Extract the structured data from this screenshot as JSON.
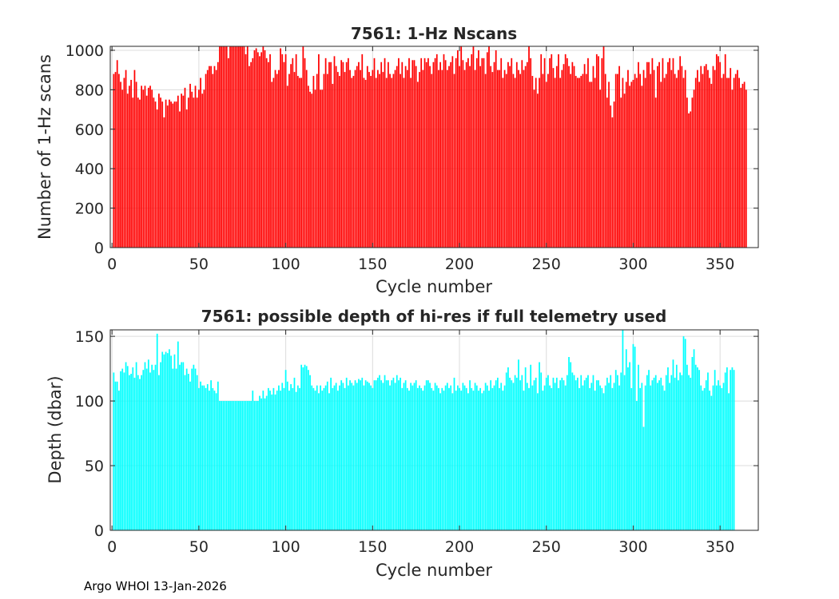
{
  "footer": "Argo WHOI 13-Jan-2026",
  "chart_data": [
    {
      "type": "bar",
      "title": "7561: 1-Hz Nscans",
      "xlabel": "Cycle number",
      "ylabel": "Number of 1-Hz scans",
      "xlim": [
        -1,
        372
      ],
      "ylim": [
        0,
        1020
      ],
      "xticks": [
        0,
        50,
        100,
        150,
        200,
        250,
        300,
        350
      ],
      "yticks": [
        0,
        200,
        400,
        600,
        800,
        1000
      ],
      "grid": true,
      "bar_color": "#ff0000",
      "x_start": 1,
      "values": [
        880,
        890,
        950,
        880,
        840,
        800,
        860,
        900,
        780,
        820,
        850,
        760,
        900,
        840,
        760,
        750,
        820,
        800,
        820,
        770,
        810,
        820,
        800,
        760,
        740,
        700,
        780,
        760,
        740,
        660,
        750,
        720,
        750,
        740,
        730,
        740,
        740,
        770,
        690,
        780,
        770,
        810,
        700,
        760,
        830,
        790,
        760,
        820,
        760,
        800,
        860,
        780,
        800,
        880,
        900,
        920,
        920,
        880,
        920,
        900,
        940,
        1020,
        1020,
        1020,
        1020,
        1020,
        960,
        1020,
        1020,
        1020,
        1020,
        1020,
        1020,
        1020,
        1020,
        1020,
        980,
        1020,
        920,
        940,
        960,
        1000,
        1010,
        990,
        970,
        990,
        1020,
        1000,
        960,
        940,
        980,
        840,
        860,
        900,
        880,
        900,
        1010,
        980,
        940,
        980,
        820,
        880,
        930,
        960,
        890,
        980,
        870,
        860,
        860,
        1020,
        960,
        900,
        820,
        790,
        780,
        870,
        800,
        880,
        980,
        800,
        800,
        880,
        960,
        880,
        940,
        940,
        830,
        970,
        920,
        890,
        870,
        950,
        940,
        890,
        940,
        960,
        900,
        860,
        870,
        900,
        920,
        940,
        900,
        980,
        860,
        850,
        920,
        890,
        870,
        900,
        960,
        860,
        900,
        880,
        940,
        890,
        960,
        860,
        940,
        880,
        860,
        880,
        900,
        920,
        960,
        880,
        940,
        860,
        920,
        900,
        960,
        860,
        950,
        950,
        920,
        840,
        890,
        960,
        900,
        960,
        940,
        960,
        920,
        880,
        940,
        960,
        980,
        900,
        940,
        900,
        980,
        950,
        900,
        920,
        940,
        970,
        880,
        960,
        1000,
        920,
        1020,
        950,
        900,
        940,
        960,
        920,
        980,
        1020,
        900,
        960,
        1000,
        920,
        960,
        960,
        880,
        990,
        1020,
        920,
        890,
        940,
        1000,
        900,
        900,
        960,
        860,
        900,
        880,
        940,
        920,
        960,
        880,
        860,
        940,
        900,
        880,
        950,
        900,
        920,
        940,
        1020,
        960,
        870,
        800,
        860,
        780,
        860,
        980,
        880,
        960,
        840,
        880,
        960,
        980,
        910,
        860,
        920,
        980,
        860,
        900,
        930,
        980,
        960,
        920,
        880,
        940,
        920,
        870,
        860,
        860,
        870,
        880,
        930,
        880,
        960,
        840,
        840,
        920,
        860,
        980,
        970,
        800,
        960,
        1020,
        880,
        760,
        840,
        720,
        660,
        740,
        880,
        880,
        920,
        760,
        860,
        780,
        840,
        900,
        820,
        840,
        850,
        880,
        860,
        940,
        880,
        820,
        900,
        860,
        940,
        940,
        880,
        960,
        900,
        760,
        920,
        940,
        840,
        960,
        860,
        880,
        940,
        960,
        900,
        960,
        880,
        860,
        900,
        970,
        920,
        860,
        900,
        760,
        680,
        690,
        760,
        800,
        860,
        900,
        840,
        920,
        880,
        920,
        930,
        900,
        860,
        830,
        920,
        900,
        980,
        970,
        940,
        860,
        880,
        980,
        860,
        860,
        910,
        800,
        860,
        880,
        900,
        860,
        810,
        830,
        840,
        800
      ],
      "series": []
    },
    {
      "type": "bar",
      "title": "7561: possible depth of hi-res if full telemetry used",
      "xlabel": "Cycle number",
      "ylabel": "Depth (dbar)",
      "xlim": [
        -1,
        372
      ],
      "ylim": [
        0,
        155
      ],
      "xticks": [
        0,
        50,
        100,
        150,
        200,
        250,
        300,
        350
      ],
      "yticks": [
        0,
        50,
        100,
        150
      ],
      "grid": true,
      "bar_color": "#00ffff",
      "x_start": 1,
      "values": [
        122,
        115,
        115,
        108,
        123,
        125,
        122,
        130,
        127,
        120,
        121,
        126,
        118,
        130,
        120,
        117,
        120,
        124,
        130,
        125,
        132,
        122,
        128,
        124,
        128,
        152,
        120,
        130,
        138,
        136,
        138,
        137,
        140,
        135,
        125,
        136,
        125,
        146,
        128,
        130,
        130,
        120,
        125,
        121,
        115,
        125,
        128,
        125,
        120,
        110,
        115,
        112,
        112,
        110,
        113,
        108,
        116,
        110,
        108,
        106,
        115,
        100,
        100,
        100,
        100,
        100,
        100,
        100,
        100,
        100,
        100,
        100,
        100,
        100,
        100,
        100,
        100,
        100,
        100,
        100,
        108,
        100,
        100,
        100,
        104,
        102,
        108,
        102,
        104,
        110,
        108,
        105,
        110,
        105,
        108,
        112,
        108,
        114,
        110,
        124,
        115,
        108,
        113,
        110,
        118,
        107,
        112,
        110,
        128,
        126,
        128,
        127,
        124,
        120,
        112,
        110,
        108,
        112,
        106,
        112,
        108,
        110,
        112,
        115,
        106,
        118,
        110,
        112,
        114,
        108,
        112,
        116,
        114,
        110,
        118,
        112,
        116,
        114,
        112,
        116,
        114,
        117,
        116,
        118,
        112,
        116,
        115,
        114,
        112,
        110,
        116,
        116,
        118,
        120,
        116,
        114,
        120,
        116,
        116,
        112,
        116,
        118,
        114,
        120,
        116,
        118,
        110,
        114,
        116,
        110,
        108,
        114,
        112,
        114,
        116,
        110,
        112,
        110,
        108,
        112,
        116,
        116,
        114,
        110,
        108,
        114,
        112,
        110,
        106,
        110,
        108,
        112,
        114,
        110,
        112,
        106,
        118,
        108,
        112,
        110,
        108,
        114,
        112,
        110,
        106,
        116,
        110,
        108,
        114,
        112,
        108,
        110,
        106,
        108,
        114,
        112,
        108,
        116,
        110,
        112,
        116,
        118,
        110,
        114,
        108,
        112,
        122,
        126,
        118,
        116,
        114,
        120,
        118,
        132,
        116,
        120,
        108,
        126,
        114,
        110,
        128,
        112,
        116,
        118,
        106,
        130,
        122,
        108,
        112,
        118,
        120,
        112,
        110,
        118,
        114,
        118,
        110,
        116,
        118,
        116,
        112,
        120,
        134,
        130,
        122,
        120,
        116,
        118,
        110,
        120,
        112,
        116,
        118,
        120,
        110,
        114,
        120,
        108,
        116,
        116,
        112,
        110,
        106,
        112,
        118,
        114,
        120,
        110,
        114,
        124,
        120,
        112,
        122,
        155,
        120,
        140,
        126,
        130,
        110,
        144,
        142,
        100,
        128,
        110,
        114,
        80,
        112,
        120,
        124,
        112,
        116,
        118,
        120,
        114,
        116,
        118,
        112,
        108,
        120,
        126,
        114,
        120,
        132,
        118,
        128,
        116,
        122,
        120,
        150,
        148,
        128,
        120,
        118,
        134,
        140,
        128,
        126,
        124,
        112,
        108,
        110,
        116,
        122,
        108,
        104,
        112,
        124,
        112,
        116,
        112,
        110,
        114,
        122,
        126,
        106,
        124,
        126,
        124
      ],
      "series": []
    }
  ]
}
